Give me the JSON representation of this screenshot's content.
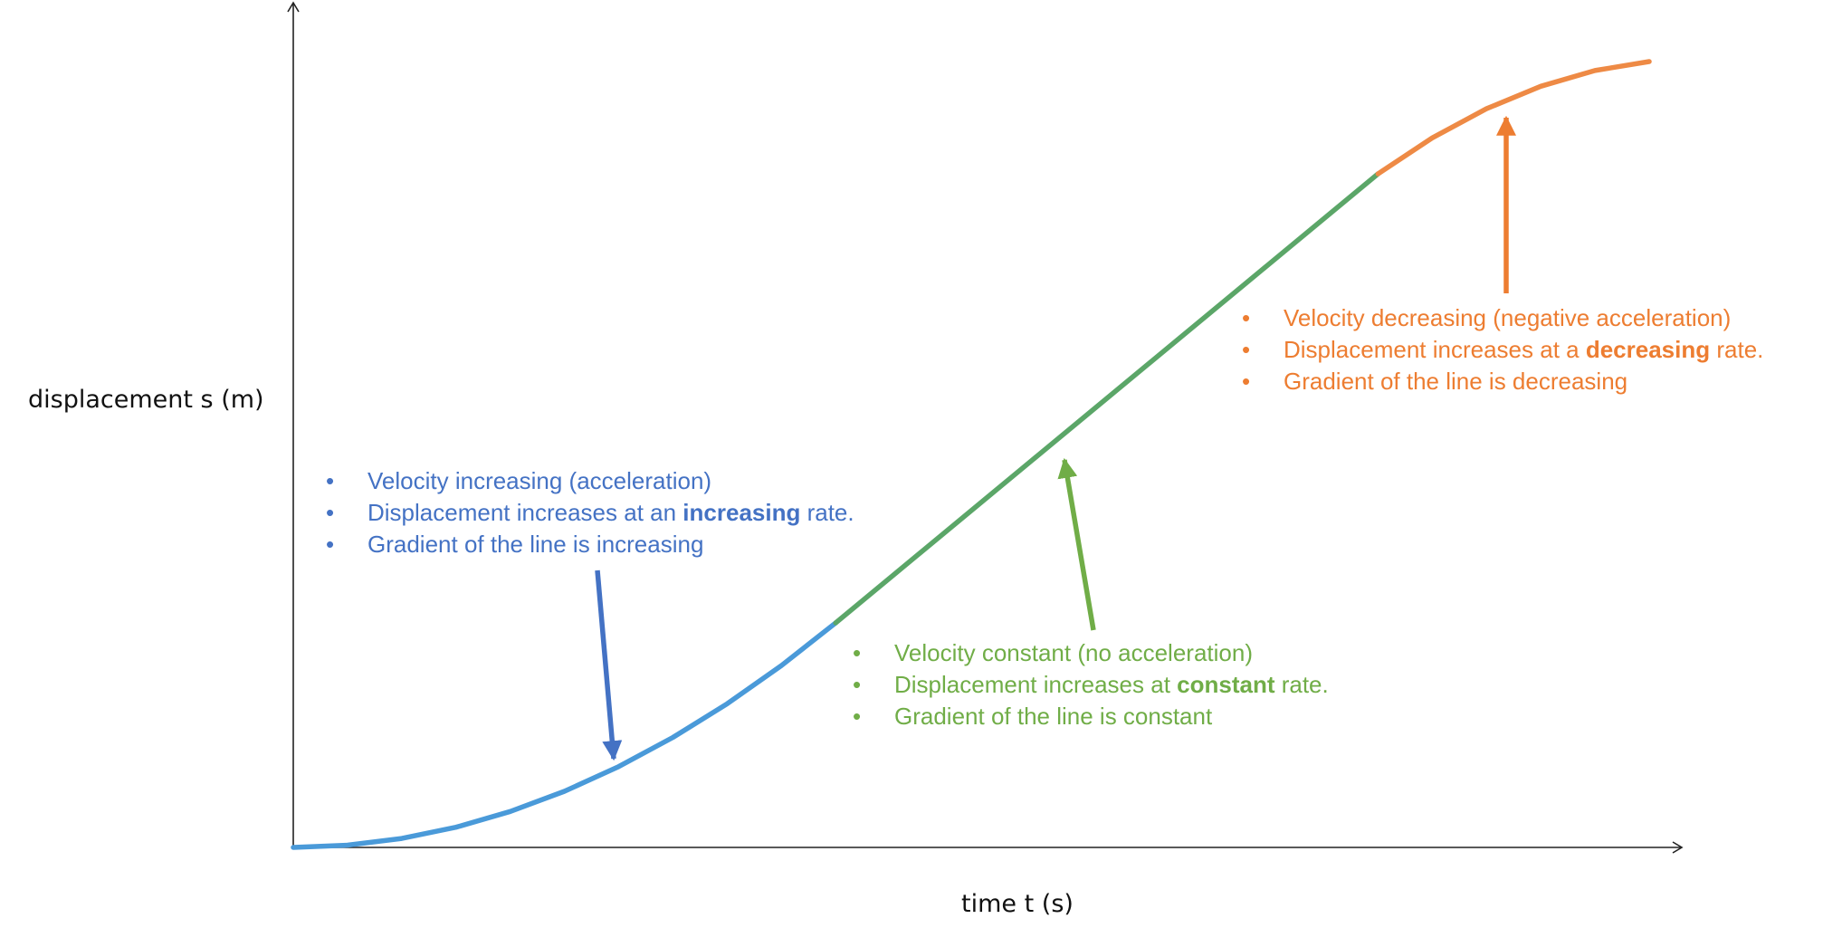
{
  "chart_data": {
    "type": "line",
    "title": "",
    "xlabel": "time t (s)",
    "ylabel": "displacement s (m)",
    "grid": false,
    "x_ticks": "none",
    "y_ticks": "none",
    "series": [
      {
        "segment": "acceleration",
        "color": "#4a9ad9",
        "x": [
          0,
          0.4,
          0.8,
          1.2,
          1.6,
          2.0,
          2.4,
          2.8,
          3.2,
          3.6,
          4.0
        ],
        "y": [
          0,
          0.04,
          0.16,
          0.36,
          0.64,
          1.0,
          1.44,
          1.96,
          2.56,
          3.24,
          4.0
        ]
      },
      {
        "segment": "constant",
        "color": "#5ba668",
        "x": [
          4.0,
          5.0,
          6.0,
          7.0,
          8.0
        ],
        "y": [
          4.0,
          6.0,
          8.0,
          10.0,
          12.0
        ]
      },
      {
        "segment": "deceleration",
        "color": "#ee8a45",
        "x": [
          8.0,
          8.4,
          8.8,
          9.2,
          9.6,
          10.0
        ],
        "y": [
          12.0,
          12.64,
          13.16,
          13.56,
          13.84,
          14.0
        ]
      }
    ],
    "annotations": [
      {
        "color": "#4472c4",
        "lines": [
          {
            "text": "Velocity increasing (acceleration)"
          },
          {
            "before": "Displacement increases at an ",
            "bold": "increasing",
            "after": " rate."
          },
          {
            "text": "Gradient of the line is increasing"
          }
        ]
      },
      {
        "color": "#70ad47",
        "lines": [
          {
            "text": "Velocity constant (no acceleration)"
          },
          {
            "before": "Displacement increases at ",
            "bold": "constant",
            "after": " rate."
          },
          {
            "text": "Gradient of the line is constant"
          }
        ]
      },
      {
        "color": "#ed7d31",
        "lines": [
          {
            "text": "Velocity decreasing (negative acceleration)"
          },
          {
            "before": "Displacement increases at a ",
            "bold": "decreasing",
            "after": " rate."
          },
          {
            "text": "Gradient of the line is decreasing"
          }
        ]
      }
    ]
  }
}
